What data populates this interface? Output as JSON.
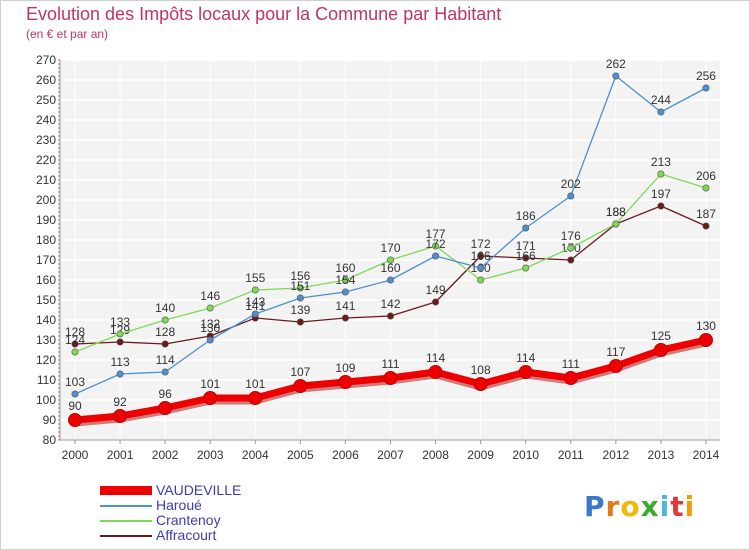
{
  "chart_data": {
    "type": "line",
    "title": "Evolution des Impôts locaux pour la Commune par Habitant",
    "subtitle": "(en € et par an)",
    "categories": [
      "2000",
      "2001",
      "2002",
      "2003",
      "2004",
      "2005",
      "2006",
      "2007",
      "2008",
      "2009",
      "2010",
      "2011",
      "2012",
      "2013",
      "2014"
    ],
    "y_ticks": [
      80,
      90,
      100,
      110,
      120,
      130,
      140,
      150,
      160,
      170,
      180,
      190,
      200,
      210,
      220,
      230,
      240,
      250,
      260,
      270
    ],
    "ylim": [
      80,
      270
    ],
    "grid": true,
    "legend_position": "bottom-left",
    "series": [
      {
        "name": "VAUDEVILLE",
        "color": "#ee0000",
        "values": [
          90,
          92,
          96,
          101,
          101,
          107,
          109,
          111,
          114,
          108,
          114,
          111,
          117,
          125,
          130
        ]
      },
      {
        "name": "Haroué",
        "color": "#4d8fd1",
        "values": [
          103,
          113,
          114,
          130,
          143,
          151,
          154,
          160,
          172,
          166,
          186,
          202,
          262,
          244,
          256
        ]
      },
      {
        "name": "Crantenoy",
        "color": "#7ed957",
        "values": [
          124,
          133,
          140,
          146,
          155,
          156,
          160,
          170,
          177,
          160,
          166,
          176,
          188,
          213,
          206
        ]
      },
      {
        "name": "Affracourt",
        "color": "#6b1a1a",
        "values": [
          128,
          129,
          128,
          132,
          141,
          139,
          141,
          142,
          149,
          172,
          171,
          170,
          188,
          197,
          187
        ]
      }
    ]
  },
  "brand": {
    "letters": [
      "P",
      "r",
      "o",
      "x",
      "i",
      "t",
      "i"
    ],
    "colors": [
      "#3a78c9",
      "#e07a1f",
      "#f2b705",
      "#3aaa35",
      "#4db3e0",
      "#e03a3a",
      "#f29c05"
    ]
  }
}
